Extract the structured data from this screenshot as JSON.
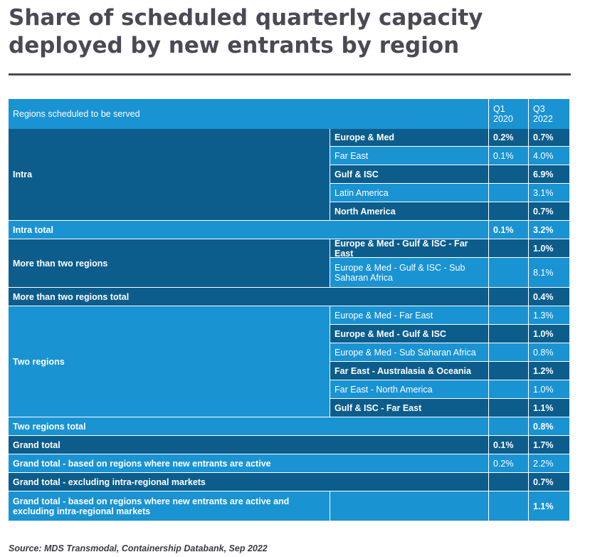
{
  "title": "Share of scheduled quarterly capacity deployed by new entrants by region",
  "table": {
    "header": {
      "region": "Regions scheduled to be served",
      "q1": "Q1\n2020",
      "q3": "Q3\n2022"
    },
    "rows": [
      {
        "group": "Intra",
        "sub": "Europe & Med",
        "q1": "0.2%",
        "q3": "0.7%"
      },
      {
        "group": "",
        "sub": "Far East",
        "q1": "0.1%",
        "q3": "4.0%"
      },
      {
        "group": "",
        "sub": "Gulf & ISC",
        "q1": "",
        "q3": "6.9%"
      },
      {
        "group": "",
        "sub": "Latin America",
        "q1": "",
        "q3": "3.1%"
      },
      {
        "group": "",
        "sub": "North America",
        "q1": "",
        "q3": "0.7%"
      },
      {
        "total": "Intra total",
        "q1": "0.1%",
        "q3": "3.2%"
      },
      {
        "group": "More than two regions",
        "sub": "Europe & Med - Gulf & ISC - Far East",
        "q1": "",
        "q3": "1.0%"
      },
      {
        "group": "",
        "sub": "Europe & Med - Gulf & ISC - Sub Saharan Africa",
        "q1": "",
        "q3": "8.1%"
      },
      {
        "total": "More than two regions total",
        "q1": "",
        "q3": "0.4%"
      },
      {
        "group": "Two regions",
        "sub": "Europe & Med - Far East",
        "q1": "",
        "q3": "1.3%"
      },
      {
        "group": "",
        "sub": "Europe & Med - Gulf & ISC",
        "q1": "",
        "q3": "1.0%"
      },
      {
        "group": "",
        "sub": "Europe & Med - Sub Saharan Africa",
        "q1": "",
        "q3": "0.8%"
      },
      {
        "group": "",
        "sub": "Far East - Australasia & Oceania",
        "q1": "",
        "q3": "1.2%"
      },
      {
        "group": "",
        "sub": "Far East - North America",
        "q1": "",
        "q3": "1.0%"
      },
      {
        "group": "",
        "sub": "Gulf & ISC - Far East",
        "q1": "",
        "q3": "1.1%"
      },
      {
        "total": "Two regions total",
        "q1": "",
        "q3": "0.8%"
      },
      {
        "total": "Grand total",
        "q1": "0.1%",
        "q3": "1.7%"
      },
      {
        "total": "Grand total - based on regions where new entrants are active",
        "q1": "0.2%",
        "q3": "2.2%"
      },
      {
        "total": "Grand total - excluding intra-regional markets",
        "q1": "",
        "q3": "0.7%"
      },
      {
        "total": "Grand total - based on regions where new entrants are active and excluding intra-regional markets",
        "q1": "",
        "q3": "1.1%"
      }
    ]
  },
  "source": "Source: MDS Transmodal, Containership Databank, Sep 2022",
  "colors": {
    "dark": "#0c5d8c",
    "light": "#1a93d3",
    "title": "#4a4a55"
  }
}
